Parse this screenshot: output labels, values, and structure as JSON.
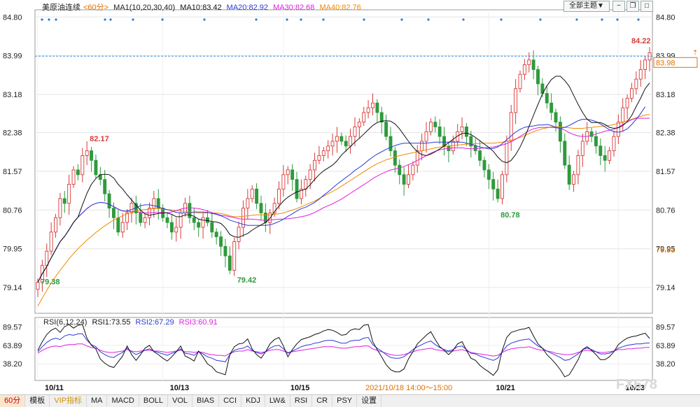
{
  "header": {
    "symbol": "美原油连续",
    "period": "<60分>",
    "ma_label": "MA1(10,20,30,40)",
    "ma10": "MA10:83.42",
    "ma20": "MA20:82.92",
    "ma30": "MA30:82.68",
    "ma40": "MA40:82.76",
    "theme_button": "全部主题▼"
  },
  "rsi_header": {
    "name": "RSI(6,12,24)",
    "rsi1": "RSI1:73.55",
    "rsi2": "RSI2:67.29",
    "rsi3": "RSI3:60.91"
  },
  "price_axis": [
    "84.80",
    "83.99",
    "83.18",
    "82.38",
    "81.57",
    "80.76",
    "79.95",
    "79.14"
  ],
  "price_axis_left": [
    "84.80",
    "83.99",
    "83.18",
    "82.38",
    "81.57",
    "80.76",
    "79.95",
    "79.14"
  ],
  "last_price": "83.98",
  "left_price": "79.93",
  "rsi_axis": [
    "89.57",
    "63.89",
    "38.20"
  ],
  "annotations": {
    "high1": "82.17",
    "low1": "79.38",
    "low2": "79.42",
    "low3": "80.78",
    "high2": "84.22"
  },
  "date_labels": [
    "10/11",
    "10/13",
    "10/15",
    "10/21",
    "10/23"
  ],
  "time_caption": "2021/10/18 14:00～15:00",
  "watermark": "FX678",
  "toolbar": {
    "period": "60分",
    "items": [
      "模板",
      "VIP指标",
      "MA",
      "MACD",
      "BOLL",
      "VOL",
      "BIAS",
      "CCI",
      "KDJ",
      "LW&",
      "RSI",
      "CR",
      "PSY",
      "设置"
    ]
  },
  "colors": {
    "up": "#d83a3a",
    "down": "#2e9a3c",
    "ma10": "#111111",
    "ma20": "#2a3bd6",
    "ma30": "#e020e0",
    "ma40": "#f08a00",
    "rsi1": "#111111",
    "rsi2": "#2a3bd6",
    "rsi3": "#e020e0"
  },
  "chart_data": {
    "type": "candlestick",
    "instrument": "美原油连续",
    "interval": "60分",
    "ylim": [
      78.6,
      84.95
    ],
    "rsi_ylim": [
      15,
      95
    ],
    "candles_close": [
      79.25,
      79.6,
      79.9,
      80.3,
      80.6,
      81.0,
      80.9,
      81.3,
      81.6,
      81.5,
      81.9,
      82.0,
      81.8,
      81.5,
      81.4,
      81.1,
      80.8,
      80.6,
      80.3,
      80.5,
      80.7,
      80.9,
      80.7,
      80.5,
      80.6,
      80.8,
      81.0,
      80.8,
      80.6,
      80.5,
      80.3,
      80.4,
      80.7,
      80.9,
      80.6,
      80.5,
      80.4,
      80.6,
      80.5,
      80.3,
      80.2,
      80.0,
      79.8,
      79.5,
      80.1,
      80.4,
      80.8,
      81.0,
      81.2,
      80.9,
      80.7,
      80.5,
      80.7,
      80.9,
      81.2,
      81.5,
      81.6,
      81.4,
      81.0,
      81.2,
      81.4,
      81.6,
      81.8,
      81.9,
      82.0,
      82.1,
      82.2,
      82.3,
      82.2,
      82.1,
      82.3,
      82.5,
      82.6,
      82.8,
      82.9,
      83.0,
      82.8,
      82.6,
      82.3,
      82.0,
      81.7,
      81.5,
      81.3,
      81.5,
      81.7,
      82.0,
      82.2,
      82.4,
      82.6,
      82.5,
      82.3,
      82.1,
      82.0,
      82.2,
      82.4,
      82.5,
      82.3,
      82.1,
      82.0,
      81.8,
      81.6,
      81.4,
      81.2,
      81.0,
      81.5,
      82.2,
      82.8,
      83.3,
      83.6,
      83.8,
      83.9,
      83.7,
      83.4,
      83.2,
      83.0,
      82.8,
      82.6,
      82.2,
      81.7,
      81.3,
      81.5,
      81.9,
      82.2,
      82.4,
      82.3,
      82.1,
      81.9,
      81.8,
      82.0,
      82.3,
      82.6,
      82.9,
      83.1,
      83.3,
      83.5,
      83.7,
      83.9,
      84.05
    ],
    "ma10": [
      79.25,
      79.43,
      79.58,
      79.76,
      79.93,
      80.1,
      80.21,
      80.35,
      80.5,
      80.61,
      80.87,
      81.11,
      81.3,
      81.42,
      81.5,
      81.51,
      81.5,
      81.43,
      81.3,
      81.2,
      81.08,
      80.97,
      80.86,
      80.76,
      80.68,
      80.65,
      80.67,
      80.69,
      80.7,
      80.7,
      80.67,
      80.62,
      80.62,
      80.66,
      80.66,
      80.63,
      80.57,
      80.55,
      80.54,
      80.52,
      80.51,
      80.48,
      80.39,
      80.25,
      80.2,
      80.19,
      80.23,
      80.27,
      80.34,
      80.4,
      80.45,
      80.5,
      80.59,
      80.73,
      80.84,
      80.95,
      81.03,
      81.09,
      81.14,
      81.17,
      81.2,
      81.29,
      81.4,
      81.5,
      81.58,
      81.64,
      81.7,
      81.79,
      81.91,
      82.0,
      82.09,
      82.18,
      82.26,
      82.35,
      82.44,
      82.53,
      82.59,
      82.62,
      82.63,
      82.62,
      82.56,
      82.46,
      82.33,
      82.2,
      82.08,
      81.98,
      81.92,
      81.9,
      81.93,
      81.98,
      82.04,
      82.1,
      82.17,
      82.24,
      82.31,
      82.36,
      82.37,
      82.34,
      82.28,
      82.21,
      82.14,
      82.07,
      81.99,
      81.87,
      81.78,
      81.75,
      81.8,
      81.92,
      82.08,
      82.28,
      82.51,
      82.74,
      82.97,
      83.19,
      83.36,
      83.49,
      83.56,
      83.56,
      83.47,
      83.35,
      83.16,
      82.97,
      82.8,
      82.66,
      82.59,
      82.59,
      82.59,
      82.55,
      82.49,
      82.47,
      82.48,
      82.53,
      82.61,
      82.74,
      82.93,
      83.1,
      83.3,
      83.42
    ],
    "ma20": [
      79.25,
      79.43,
      79.58,
      79.76,
      79.93,
      80.1,
      80.21,
      80.35,
      80.5,
      80.61,
      80.7,
      80.79,
      80.86,
      80.9,
      80.92,
      80.91,
      80.88,
      80.83,
      80.78,
      80.74,
      80.74,
      80.77,
      80.81,
      80.85,
      80.87,
      80.87,
      80.85,
      80.83,
      80.79,
      80.77,
      80.74,
      80.71,
      80.7,
      80.7,
      80.7,
      80.72,
      80.72,
      80.72,
      80.71,
      80.69,
      80.67,
      80.64,
      80.6,
      80.55,
      80.52,
      80.49,
      80.46,
      80.44,
      80.44,
      80.44,
      80.44,
      80.44,
      80.45,
      80.48,
      80.52,
      80.57,
      80.63,
      80.68,
      80.74,
      80.79,
      80.82,
      80.87,
      80.92,
      80.99,
      81.07,
      81.14,
      81.22,
      81.3,
      81.37,
      81.44,
      81.51,
      81.59,
      81.65,
      81.72,
      81.8,
      81.87,
      81.93,
      81.98,
      82.03,
      82.07,
      82.11,
      82.14,
      82.16,
      82.16,
      82.16,
      82.16,
      82.16,
      82.16,
      82.17,
      82.18,
      82.18,
      82.18,
      82.18,
      82.18,
      82.18,
      82.18,
      82.16,
      82.14,
      82.11,
      82.08,
      82.06,
      82.04,
      82.05,
      82.08,
      82.15,
      82.23,
      82.31,
      82.39,
      82.45,
      82.49,
      82.51,
      82.52,
      82.54,
      82.54,
      82.55,
      82.53,
      82.49,
      82.47,
      82.49,
      82.53,
      82.58,
      82.63,
      82.66,
      82.66,
      82.64,
      82.61,
      82.56,
      82.5,
      82.44,
      82.4,
      82.39,
      82.41,
      82.46,
      82.55,
      82.66,
      82.78,
      82.92
    ],
    "ma30": [
      79.25,
      79.43,
      79.58,
      79.76,
      79.93,
      80.1,
      80.21,
      80.35,
      80.5,
      80.61,
      80.7,
      80.79,
      80.86,
      80.9,
      80.92,
      80.91,
      80.88,
      80.83,
      80.78,
      80.74,
      80.73,
      80.73,
      80.73,
      80.71,
      80.7,
      80.7,
      80.71,
      80.71,
      80.71,
      80.7,
      80.72,
      80.75,
      80.78,
      80.8,
      80.81,
      80.8,
      80.79,
      80.77,
      80.74,
      80.71,
      80.68,
      80.65,
      80.64,
      80.62,
      80.6,
      80.58,
      80.57,
      80.57,
      80.57,
      80.56,
      80.55,
      80.55,
      80.55,
      80.56,
      80.57,
      80.57,
      80.58,
      80.59,
      80.6,
      80.62,
      80.64,
      80.67,
      80.71,
      80.76,
      80.81,
      80.85,
      80.89,
      80.94,
      80.99,
      81.05,
      81.11,
      81.17,
      81.23,
      81.29,
      81.35,
      81.42,
      81.47,
      81.52,
      81.56,
      81.6,
      81.62,
      81.64,
      81.67,
      81.71,
      81.75,
      81.8,
      81.85,
      81.9,
      81.95,
      81.99,
      82.02,
      82.04,
      82.05,
      82.06,
      82.06,
      82.06,
      82.05,
      82.04,
      82.05,
      82.05,
      82.06,
      82.07,
      82.08,
      82.1,
      82.12,
      82.15,
      82.19,
      82.24,
      82.3,
      82.36,
      82.42,
      82.46,
      82.48,
      82.49,
      82.49,
      82.49,
      82.48,
      82.47,
      82.43,
      82.38,
      82.34,
      82.31,
      82.3,
      82.3,
      82.32,
      82.35,
      82.38,
      82.41,
      82.43,
      82.45,
      82.49,
      82.55,
      82.6,
      82.65,
      82.68,
      82.68,
      82.68,
      82.68
    ],
    "ma40": [
      78.75,
      78.92,
      79.08,
      79.23,
      79.37,
      79.5,
      79.62,
      79.74,
      79.85,
      79.95,
      80.04,
      80.13,
      80.21,
      80.29,
      80.36,
      80.43,
      80.49,
      80.55,
      80.6,
      80.64,
      80.68,
      80.71,
      80.74,
      80.76,
      80.77,
      80.78,
      80.79,
      80.79,
      80.78,
      80.77,
      80.76,
      80.75,
      80.74,
      80.73,
      80.72,
      80.71,
      80.7,
      80.7,
      80.7,
      80.7,
      80.7,
      80.69,
      80.67,
      80.64,
      80.62,
      80.62,
      80.63,
      80.64,
      80.65,
      80.66,
      80.66,
      80.66,
      80.66,
      80.67,
      80.68,
      80.7,
      80.73,
      80.76,
      80.79,
      80.83,
      80.87,
      80.91,
      80.95,
      81.0,
      81.05,
      81.1,
      81.15,
      81.2,
      81.26,
      81.32,
      81.38,
      81.44,
      81.5,
      81.56,
      81.62,
      81.68,
      81.73,
      81.77,
      81.81,
      81.84,
      81.87,
      81.9,
      81.92,
      81.94,
      81.96,
      81.98,
      82.0,
      82.02,
      82.04,
      82.06,
      82.08,
      82.09,
      82.1,
      82.11,
      82.12,
      82.13,
      82.14,
      82.14,
      82.15,
      82.15,
      82.16,
      82.16,
      82.16,
      82.17,
      82.18,
      82.2,
      82.22,
      82.25,
      82.28,
      82.32,
      82.36,
      82.4,
      82.43,
      82.46,
      82.48,
      82.5,
      82.5,
      82.5,
      82.49,
      82.48,
      82.47,
      82.47,
      82.47,
      82.48,
      82.49,
      82.5,
      82.51,
      82.52,
      82.53,
      82.55,
      82.57,
      82.6,
      82.63,
      82.66,
      82.69,
      82.72,
      82.75,
      82.76
    ],
    "rsi1": [
      57,
      69,
      79,
      85,
      88,
      82,
      90,
      93,
      88,
      92,
      93,
      74,
      64,
      59,
      45,
      39,
      35,
      33,
      41,
      49,
      63,
      51,
      43,
      51,
      60,
      64,
      55,
      51,
      46,
      42,
      48,
      55,
      63,
      49,
      46,
      42,
      56,
      48,
      38,
      34,
      27,
      25,
      23,
      51,
      62,
      66,
      67,
      73,
      59,
      51,
      46,
      55,
      66,
      72,
      75,
      63,
      48,
      58,
      66,
      72,
      74,
      76,
      79,
      81,
      84,
      86,
      85,
      82,
      78,
      79,
      85,
      87,
      86,
      92,
      93,
      69,
      58,
      48,
      37,
      30,
      27,
      27,
      31,
      45,
      55,
      66,
      72,
      78,
      83,
      72,
      62,
      57,
      51,
      57,
      66,
      69,
      57,
      46,
      43,
      36,
      31,
      27,
      22,
      30,
      57,
      75,
      82,
      84,
      86,
      87,
      89,
      77,
      66,
      60,
      51,
      45,
      38,
      30,
      20,
      23,
      33,
      44,
      58,
      62,
      57,
      51,
      44,
      44,
      48,
      55,
      65,
      70,
      74,
      76,
      77,
      79,
      81,
      73.55
    ],
    "rsi2": [
      55,
      62,
      68,
      72,
      74,
      72,
      77,
      79,
      78,
      80,
      80,
      71,
      65,
      62,
      55,
      51,
      48,
      47,
      51,
      54,
      60,
      55,
      51,
      54,
      57,
      59,
      56,
      54,
      52,
      50,
      53,
      55,
      59,
      53,
      52,
      50,
      55,
      52,
      48,
      46,
      43,
      42,
      41,
      51,
      57,
      59,
      60,
      63,
      57,
      54,
      52,
      55,
      60,
      63,
      64,
      59,
      53,
      56,
      59,
      62,
      64,
      65,
      67,
      68,
      70,
      71,
      71,
      69,
      67,
      67,
      70,
      71,
      71,
      74,
      75,
      65,
      60,
      56,
      51,
      47,
      46,
      46,
      48,
      53,
      58,
      62,
      65,
      68,
      70,
      65,
      61,
      58,
      56,
      58,
      62,
      63,
      58,
      53,
      52,
      49,
      47,
      45,
      43,
      46,
      55,
      63,
      67,
      69,
      71,
      72,
      73,
      68,
      63,
      60,
      56,
      53,
      50,
      47,
      43,
      44,
      48,
      52,
      58,
      60,
      58,
      55,
      52,
      52,
      53,
      56,
      60,
      62,
      64,
      65,
      66,
      66,
      67,
      67.29
    ],
    "rsi3": [
      53,
      57,
      60,
      62,
      63,
      62,
      64,
      65,
      65,
      66,
      66,
      63,
      61,
      60,
      57,
      55,
      54,
      54,
      55,
      56,
      58,
      56,
      55,
      56,
      57,
      57,
      56,
      56,
      55,
      54,
      55,
      56,
      57,
      55,
      55,
      54,
      55,
      54,
      52,
      51,
      50,
      50,
      49,
      53,
      55,
      56,
      56,
      58,
      56,
      55,
      54,
      55,
      57,
      58,
      58,
      56,
      54,
      55,
      56,
      57,
      58,
      59,
      60,
      61,
      62,
      62,
      62,
      61,
      60,
      60,
      61,
      62,
      62,
      63,
      63,
      59,
      57,
      55,
      53,
      51,
      50,
      50,
      51,
      53,
      55,
      57,
      58,
      59,
      60,
      58,
      57,
      56,
      55,
      56,
      57,
      58,
      56,
      54,
      53,
      52,
      51,
      50,
      49,
      50,
      54,
      57,
      59,
      60,
      61,
      61,
      62,
      60,
      58,
      57,
      56,
      55,
      53,
      52,
      51,
      51,
      52,
      54,
      56,
      57,
      56,
      55,
      54,
      54,
      55,
      56,
      58,
      58,
      59,
      59,
      60,
      60,
      61,
      60.91
    ]
  }
}
